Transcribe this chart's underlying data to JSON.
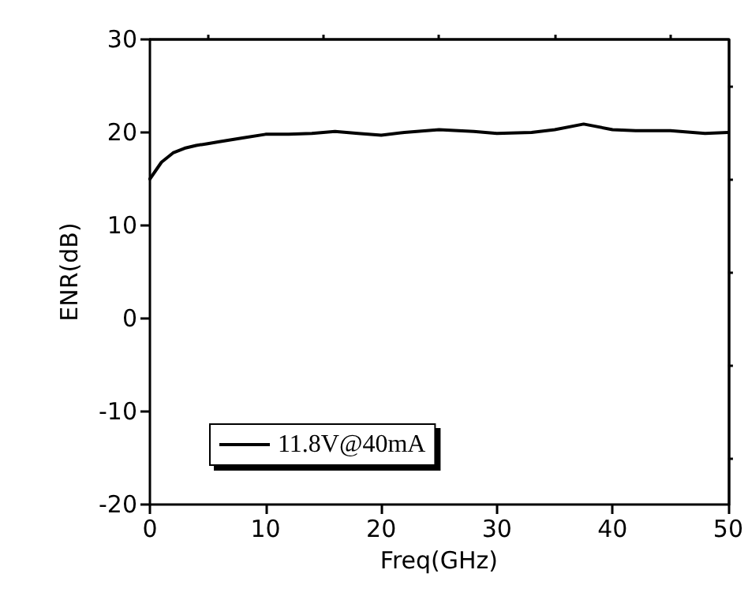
{
  "chart_data": {
    "type": "line",
    "xlabel": "Freq(GHz)",
    "ylabel": "ENR(dB)",
    "xlim": [
      0,
      50
    ],
    "xticks": [
      0,
      10,
      20,
      30,
      40,
      50
    ],
    "ylim": [
      -20,
      30
    ],
    "yticks": [
      -20,
      -10,
      0,
      10,
      20,
      30
    ],
    "grid": false,
    "legend": "bottom left",
    "marker": "none",
    "line_style": "solid",
    "series": [
      {
        "name": "11.8V@40mA",
        "color": "#000000",
        "x": [
          0,
          1,
          2,
          3,
          4,
          5,
          6,
          8,
          10,
          12,
          14,
          16,
          18,
          20,
          22,
          25,
          28,
          30,
          33,
          35,
          37.5,
          40,
          42,
          45,
          48,
          50
        ],
        "values": [
          15,
          16.8,
          17.8,
          18.3,
          18.6,
          18.8,
          19,
          19.4,
          19.8,
          19.8,
          19.9,
          20.1,
          19.9,
          19.7,
          20,
          20.3,
          20.1,
          19.9,
          20,
          20.3,
          20.9,
          20.3,
          20.2,
          20.2,
          19.9,
          20
        ]
      }
    ]
  }
}
